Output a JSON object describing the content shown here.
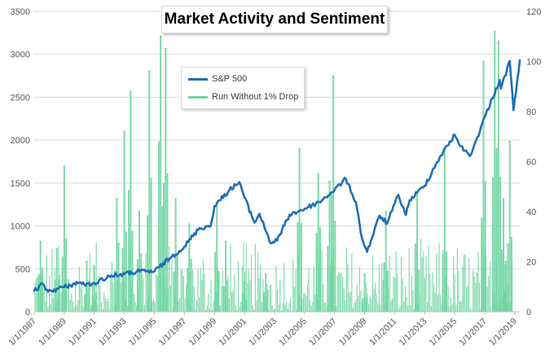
{
  "chart_data": {
    "type": "line",
    "title": "Market Activity and Sentiment",
    "x_range": [
      "1/1/1987",
      "5/1/2019"
    ],
    "x_tick_labels": [
      "1/1/1987",
      "1/1/1989",
      "1/1/1991",
      "1/1/1993",
      "1/1/1995",
      "1/1/1997",
      "1/1/1999",
      "1/1/2001",
      "1/1/2003",
      "1/1/2005",
      "1/1/2007",
      "1/1/2009",
      "1/1/2011",
      "1/1/2013",
      "1/1/2015",
      "1/1/2017",
      "1/1/2019"
    ],
    "y_left": {
      "ylim": [
        0,
        3500
      ],
      "ticks": [
        0,
        500,
        1000,
        1500,
        2000,
        2500,
        3000,
        3500
      ]
    },
    "y_right": {
      "ylim": [
        0,
        120
      ],
      "ticks": [
        0,
        20,
        40,
        60,
        80,
        100,
        120
      ]
    },
    "grid": true,
    "legend_position": "top-center",
    "legend": [
      "S&P 500",
      "Run Without 1% Drop"
    ],
    "series": [
      {
        "name": "S&P 500",
        "axis": "left",
        "color": "#1f6fb4",
        "points": [
          [
            "1/1/1987",
            245
          ],
          [
            "8/1/1987",
            320
          ],
          [
            "12/1/1987",
            235
          ],
          [
            "1/1/1989",
            290
          ],
          [
            "1/1/1990",
            340
          ],
          [
            "10/1/1990",
            305
          ],
          [
            "1/1/1991",
            335
          ],
          [
            "1/1/1992",
            415
          ],
          [
            "1/1/1993",
            440
          ],
          [
            "1/1/1994",
            470
          ],
          [
            "1/1/1995",
            470
          ],
          [
            "1/1/1996",
            620
          ],
          [
            "1/1/1997",
            760
          ],
          [
            "1/1/1998",
            975
          ],
          [
            "10/1/1998",
            1000
          ],
          [
            "1/1/1999",
            1230
          ],
          [
            "1/1/2000",
            1420
          ],
          [
            "9/1/2000",
            1510
          ],
          [
            "1/1/2001",
            1330
          ],
          [
            "9/1/2001",
            1040
          ],
          [
            "1/1/2002",
            1140
          ],
          [
            "10/1/2002",
            800
          ],
          [
            "3/1/2003",
            830
          ],
          [
            "1/1/2004",
            1130
          ],
          [
            "1/1/2005",
            1200
          ],
          [
            "1/1/2006",
            1280
          ],
          [
            "1/1/2007",
            1420
          ],
          [
            "10/1/2007",
            1550
          ],
          [
            "6/1/2008",
            1280
          ],
          [
            "11/1/2008",
            850
          ],
          [
            "3/1/2009",
            700
          ],
          [
            "1/1/2010",
            1120
          ],
          [
            "7/1/2010",
            1030
          ],
          [
            "4/1/2011",
            1360
          ],
          [
            "10/1/2011",
            1130
          ],
          [
            "1/1/2012",
            1300
          ],
          [
            "1/1/2013",
            1470
          ],
          [
            "1/1/2014",
            1800
          ],
          [
            "1/1/2015",
            2060
          ],
          [
            "8/1/2015",
            1880
          ],
          [
            "2/1/2016",
            1830
          ],
          [
            "1/1/2017",
            2270
          ],
          [
            "1/1/2018",
            2700
          ],
          [
            "2/1/2018",
            2600
          ],
          [
            "9/1/2018",
            2920
          ],
          [
            "12/1/2018",
            2350
          ],
          [
            "5/1/2019",
            2930
          ]
        ]
      },
      {
        "name": "Run Without 1% Drop",
        "axis": "right",
        "color": "#6fd6a0",
        "points": [
          [
            "6/1/1987",
            28
          ],
          [
            "7/1/1988",
            25
          ],
          [
            "1/1/1989",
            58
          ],
          [
            "7/1/1990",
            20
          ],
          [
            "1/1/1991",
            18
          ],
          [
            "7/1/1992",
            45
          ],
          [
            "1/1/1993",
            72
          ],
          [
            "6/1/1993",
            88
          ],
          [
            "1/1/1994",
            40
          ],
          [
            "9/1/1994",
            96
          ],
          [
            "6/1/1995",
            110
          ],
          [
            "10/1/1995",
            105
          ],
          [
            "6/1/1996",
            45
          ],
          [
            "5/1/1997",
            35
          ],
          [
            "3/1/1999",
            42
          ],
          [
            "10/1/1999",
            28
          ],
          [
            "1/1/2001",
            12
          ],
          [
            "6/1/2002",
            15
          ],
          [
            "9/1/2004",
            65
          ],
          [
            "12/1/2005",
            55
          ],
          [
            "9/1/2006",
            52
          ],
          [
            "12/1/2006",
            94
          ],
          [
            "1/1/2009",
            15
          ],
          [
            "6/1/2010",
            40
          ],
          [
            "7/1/2012",
            48
          ],
          [
            "5/1/2014",
            65
          ],
          [
            "12/1/2016",
            100
          ],
          [
            "9/1/2017",
            112
          ],
          [
            "12/1/2017",
            108
          ],
          [
            "4/1/2018",
            45
          ],
          [
            "6/1/2018",
            20
          ],
          [
            "9/1/2018",
            68
          ]
        ]
      }
    ]
  }
}
